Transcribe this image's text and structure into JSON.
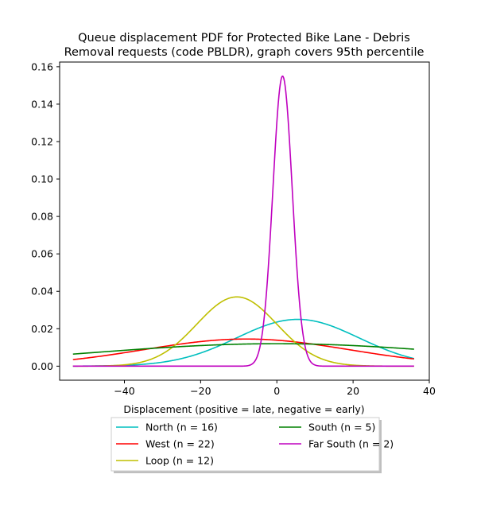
{
  "chart_data": {
    "type": "line",
    "title_lines": [
      "Queue displacement PDF for Protected Bike Lane - Debris",
      "Removal  requests (code PBLDR), graph covers 95th percentile"
    ],
    "xlabel": "Displacement (positive = late, negative = early)",
    "ylabel": "",
    "xlim": [
      -57,
      40
    ],
    "ylim": [
      -0.0075,
      0.1625
    ],
    "x_ticks": [
      -40,
      -20,
      0,
      20,
      40
    ],
    "y_ticks": [
      0.0,
      0.02,
      0.04,
      0.06,
      0.08,
      0.1,
      0.12,
      0.14,
      0.16
    ],
    "x_range": [
      -53.5,
      36
    ],
    "grid": false,
    "legend_position": "below",
    "legend_columns": 2,
    "series": [
      {
        "name": "North (n = 16)",
        "color": "#00bfbf",
        "shape": "gaussian",
        "mean": 5.5,
        "sd": 16,
        "peak": 0.025
      },
      {
        "name": "West (n = 22)",
        "color": "#ff0000",
        "shape": "gaussian",
        "mean": -8,
        "sd": 27,
        "peak": 0.0145
      },
      {
        "name": "Loop (n = 12)",
        "color": "#bfbf00",
        "shape": "gaussian",
        "mean": -10.5,
        "sd": 10.5,
        "peak": 0.037
      },
      {
        "name": "South (n = 5)",
        "color": "#008000",
        "shape": "gaussian",
        "mean": 0,
        "sd": 48,
        "peak": 0.012
      },
      {
        "name": "Far South (n = 2)",
        "color": "#bf00bf",
        "shape": "gaussian",
        "mean": 1.5,
        "sd": 2.55,
        "peak": 0.155
      }
    ]
  }
}
